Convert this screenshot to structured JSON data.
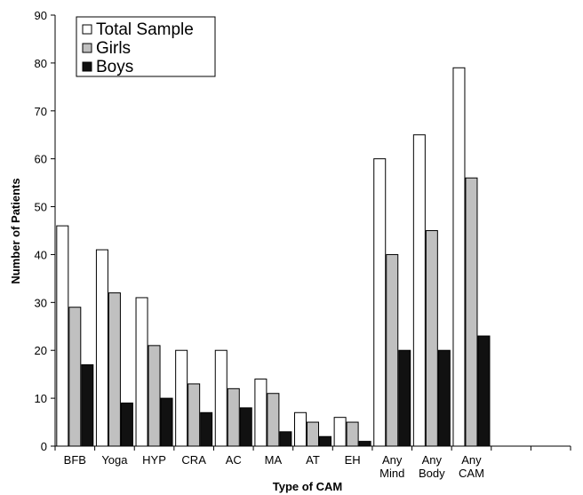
{
  "chart_data": {
    "type": "bar",
    "title": "",
    "xlabel": "Type of CAM",
    "ylabel": "Number of Patients",
    "ylim": [
      0,
      90
    ],
    "yticks": [
      0,
      10,
      20,
      30,
      40,
      50,
      60,
      70,
      80,
      90
    ],
    "categories": [
      [
        "BFB"
      ],
      [
        "Yoga"
      ],
      [
        "HYP"
      ],
      [
        "CRA"
      ],
      [
        "AC"
      ],
      [
        "MA"
      ],
      [
        "AT"
      ],
      [
        "EH"
      ],
      [
        "Any",
        "Mind"
      ],
      [
        "Any",
        "Body"
      ],
      [
        "Any",
        "CAM"
      ]
    ],
    "series": [
      {
        "name": "Total Sample",
        "color": "#ffffff",
        "values": [
          46,
          41,
          31,
          20,
          20,
          14,
          7,
          6,
          60,
          65,
          79
        ]
      },
      {
        "name": "Girls",
        "color": "#c0c0c0",
        "values": [
          29,
          32,
          21,
          13,
          12,
          11,
          5,
          5,
          40,
          45,
          56
        ]
      },
      {
        "name": "Boys",
        "color": "#111111",
        "values": [
          17,
          9,
          10,
          7,
          8,
          3,
          2,
          1,
          20,
          20,
          23
        ]
      }
    ],
    "legend_position": "top-left",
    "grid": false
  }
}
